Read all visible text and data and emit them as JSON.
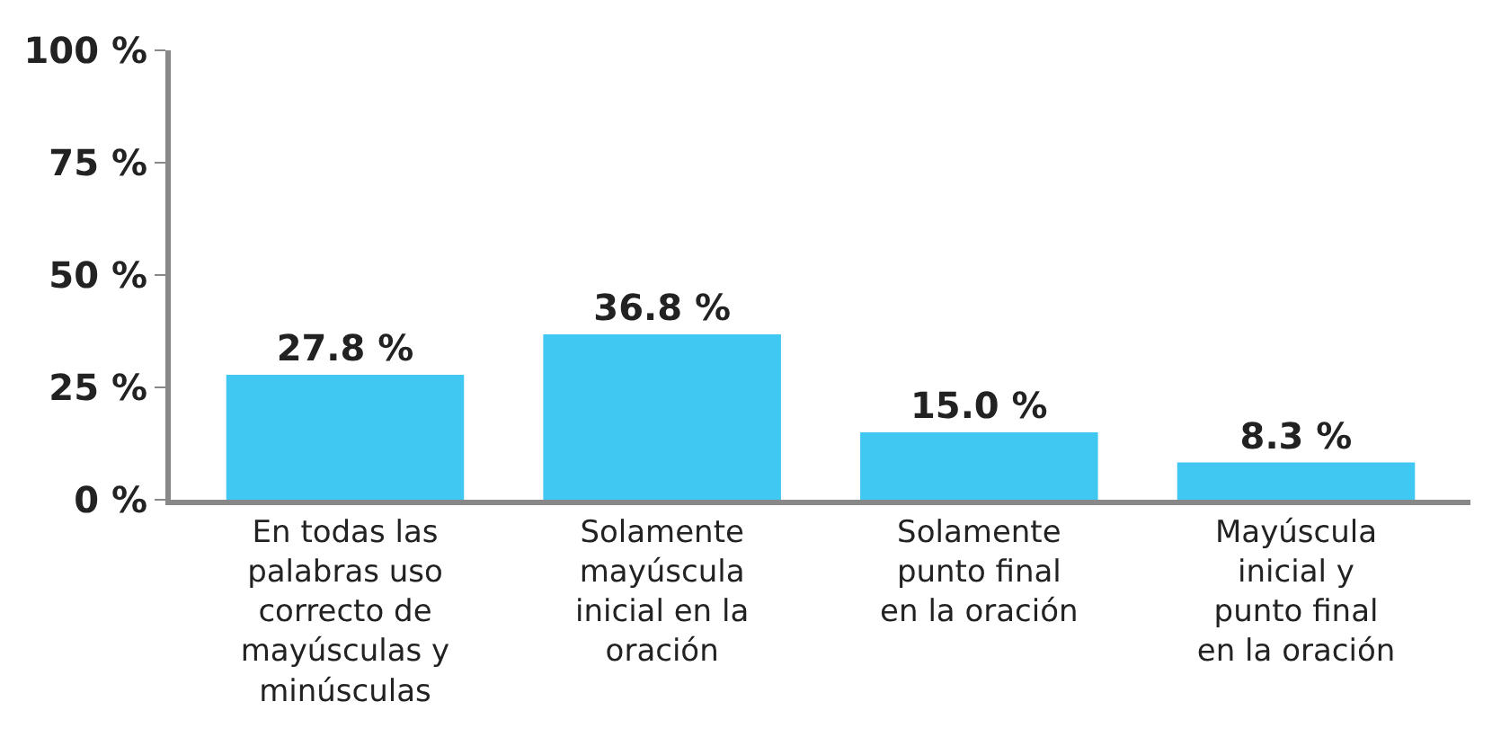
{
  "chart_data": {
    "type": "bar",
    "categories": [
      "En todas las palabras uso correcto de mayúsculas y minúsculas",
      "Solamente mayúscula inicial en la oración",
      "Solamente punto final en la oración",
      "Mayúscula inicial y punto final en la oración"
    ],
    "values": [
      27.8,
      36.8,
      15.0,
      8.3
    ],
    "value_labels": [
      "27.8 %",
      "36.8 %",
      "15.0 %",
      "8.3 %"
    ],
    "color": "#40c8f2",
    "ylim": [
      0,
      100
    ],
    "yticks": [
      {
        "value": 0,
        "label": "0 %"
      },
      {
        "value": 25,
        "label": "25 %"
      },
      {
        "value": 50,
        "label": "50 %"
      },
      {
        "value": 75,
        "label": "75 %"
      },
      {
        "value": 100,
        "label": "100 %"
      }
    ]
  }
}
